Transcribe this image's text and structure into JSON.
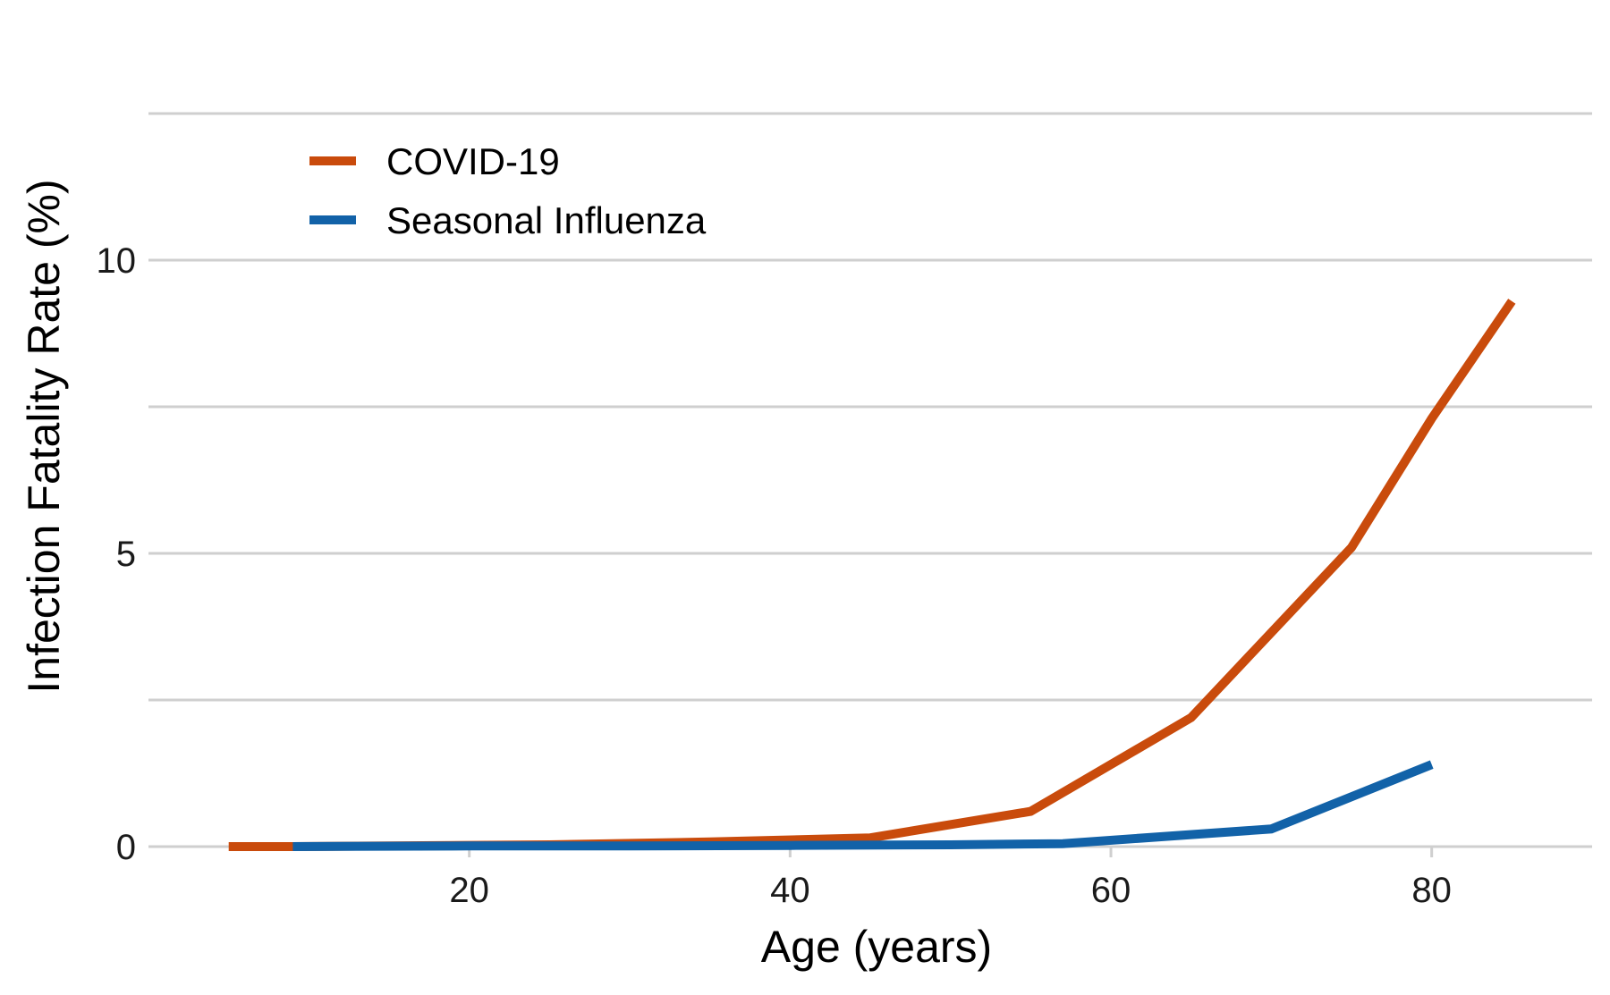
{
  "chart_data": {
    "type": "line",
    "title": "",
    "xlabel": "Age (years)",
    "ylabel": "Infection Fatality Rate (%)",
    "xlim": [
      0,
      90
    ],
    "ylim": [
      0,
      12.5
    ],
    "x_ticks": [
      20,
      40,
      60,
      80
    ],
    "y_ticks": [
      0,
      5,
      10
    ],
    "y_gridlines": [
      0,
      2.5,
      5,
      7.5,
      10,
      12.5
    ],
    "grid": true,
    "legend_position": "top-left",
    "series": [
      {
        "name": "COVID-19",
        "color": "#c94b0c",
        "x": [
          5,
          9,
          15,
          25,
          35,
          45,
          55,
          65,
          75,
          80,
          85
        ],
        "y": [
          0.0,
          0.0,
          0.01,
          0.03,
          0.08,
          0.15,
          0.6,
          2.2,
          5.1,
          7.3,
          9.3
        ]
      },
      {
        "name": "Seasonal Influenza",
        "color": "#1262a8",
        "x": [
          9,
          20,
          30,
          40,
          50,
          57,
          70,
          80
        ],
        "y": [
          0.0,
          0.01,
          0.01,
          0.02,
          0.03,
          0.05,
          0.3,
          1.4
        ]
      }
    ]
  }
}
